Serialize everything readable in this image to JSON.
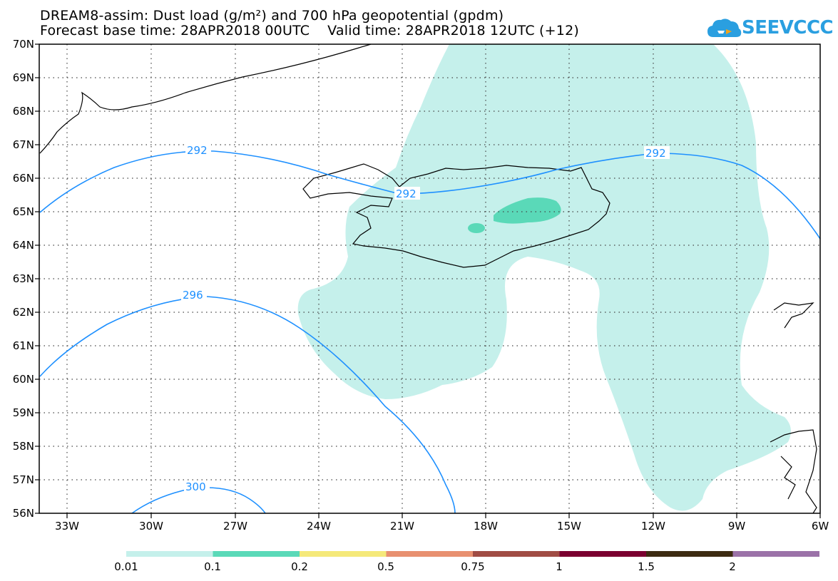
{
  "title": {
    "line1": "DREAM8-assim: Dust load (g/m²) and 700 hPa geopotential (gpdm)",
    "line2": "Forecast base time: 28APR2018 00UTC    Valid time: 28APR2018 12UTC (+12)"
  },
  "logo": {
    "text": "SEEVCCC",
    "icon": "cloud-icon",
    "color": "#2a9fe0"
  },
  "lat_labels": [
    "70N",
    "69N",
    "68N",
    "67N",
    "66N",
    "65N",
    "64N",
    "63N",
    "62N",
    "61N",
    "60N",
    "59N",
    "58N",
    "57N",
    "56N"
  ],
  "lon_labels": [
    "33W",
    "30W",
    "27W",
    "24W",
    "21W",
    "18W",
    "15W",
    "12W",
    "9W",
    "6W"
  ],
  "contours": {
    "color": "#1e90ff",
    "labels": [
      "292",
      "292",
      "292",
      "296",
      "300"
    ]
  },
  "colorbar": {
    "labels": [
      "0.01",
      "0.1",
      "0.2",
      "0.5",
      "0.75",
      "1",
      "1.5",
      "2"
    ],
    "colors": [
      "#c5f0eb",
      "#5ad9b8",
      "#f5e97a",
      "#e89070",
      "#a04c44",
      "#7b0030",
      "#3d2b12",
      "#9b72a8"
    ]
  },
  "fill_colors": {
    "low": "#c5f0eb",
    "mid": "#5ad9b8"
  }
}
